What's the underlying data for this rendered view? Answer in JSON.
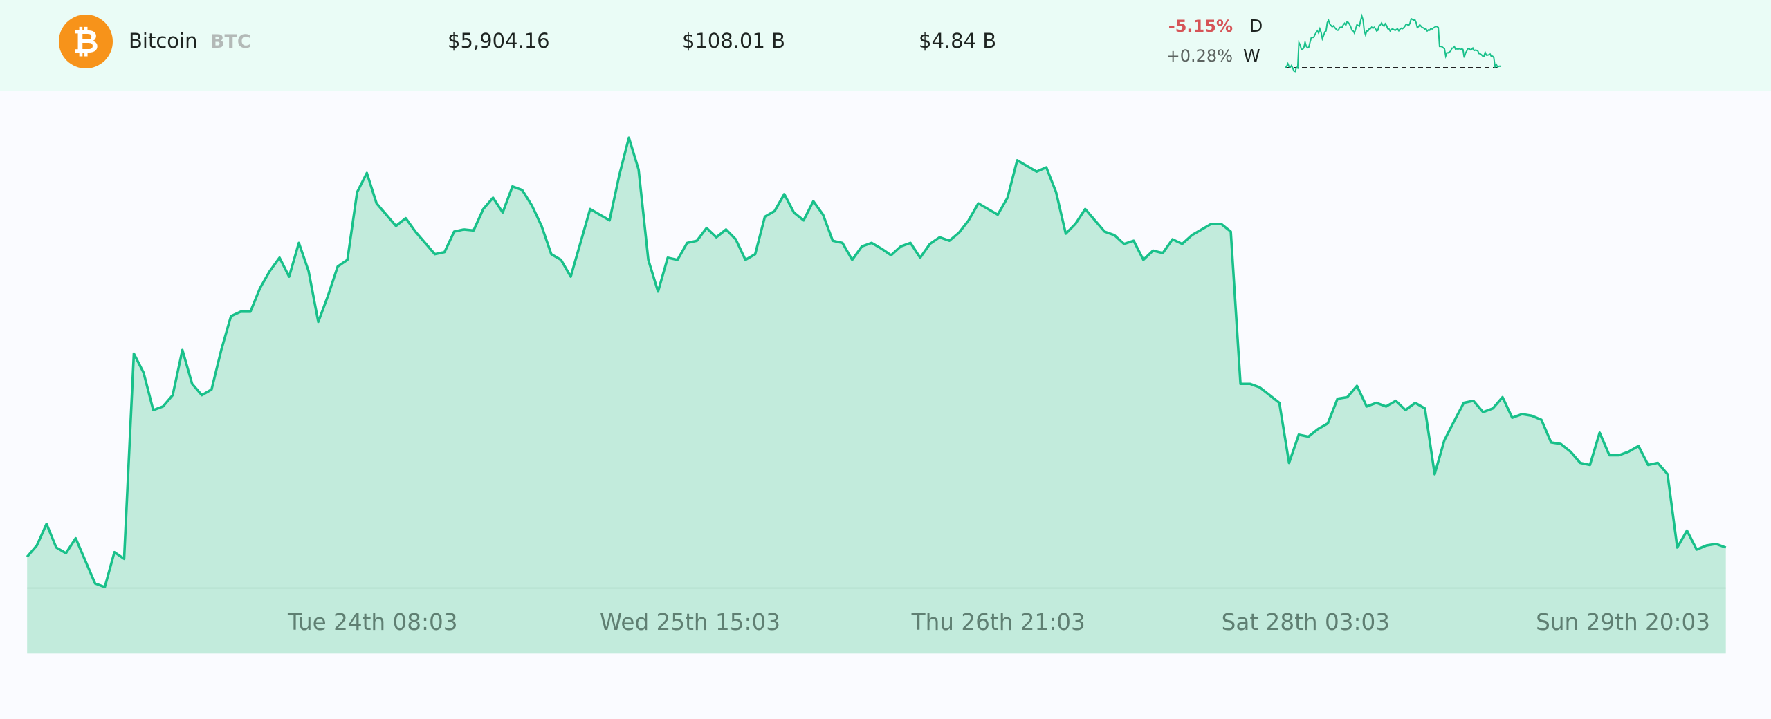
{
  "coin": {
    "name": "Bitcoin",
    "symbol": "BTC",
    "icon": "bitcoin-icon",
    "price": "$5,904.16",
    "market_cap": "$108.01 B",
    "volume": "$4.84 B",
    "change_day": "-5.15%",
    "change_day_label": "D",
    "change_week": "+0.28%",
    "change_week_label": "W"
  },
  "colors": {
    "line": "#19c08a",
    "fill": "#c2ebdc",
    "negative": "#d65457",
    "brand": "#f7931a"
  },
  "chart_data": {
    "type": "area",
    "title": "",
    "xlabel": "",
    "ylabel": "",
    "x_ticks": [
      "Tue 24th 08:03",
      "Wed 25th 15:03",
      "Thu 26th 21:03",
      "Sat 28th 03:03",
      "Sun 29th 20:03"
    ],
    "ylim": [
      5825,
      6791
    ],
    "grid": false,
    "y_axis_visible": false,
    "values": [
      5886,
      5908,
      5950,
      5904,
      5893,
      5922,
      5878,
      5834,
      5827,
      5895,
      5882,
      6282,
      6245,
      6172,
      6179,
      6201,
      6289,
      6223,
      6201,
      6212,
      6289,
      6355,
      6364,
      6364,
      6410,
      6443,
      6469,
      6432,
      6498,
      6443,
      6344,
      6395,
      6452,
      6465,
      6597,
      6634,
      6575,
      6553,
      6531,
      6546,
      6520,
      6498,
      6476,
      6480,
      6520,
      6524,
      6522,
      6564,
      6586,
      6557,
      6608,
      6601,
      6571,
      6531,
      6476,
      6465,
      6432,
      6498,
      6564,
      6553,
      6542,
      6630,
      6703,
      6641,
      6465,
      6403,
      6469,
      6465,
      6498,
      6502,
      6527,
      6509,
      6524,
      6505,
      6465,
      6476,
      6549,
      6560,
      6593,
      6557,
      6542,
      6579,
      6553,
      6502,
      6498,
      6465,
      6491,
      6498,
      6487,
      6474,
      6491,
      6498,
      6469,
      6496,
      6509,
      6502,
      6518,
      6542,
      6575,
      6564,
      6553,
      6586,
      6659,
      6648,
      6637,
      6645,
      6597,
      6516,
      6535,
      6564,
      6542,
      6520,
      6513,
      6496,
      6502,
      6465,
      6483,
      6478,
      6505,
      6496,
      6513,
      6524,
      6535,
      6535,
      6520,
      6223,
      6223,
      6216,
      6201,
      6186,
      6069,
      6124,
      6120,
      6135,
      6146,
      6194,
      6197,
      6219,
      6179,
      6186,
      6179,
      6190,
      6172,
      6186,
      6175,
      6047,
      6113,
      6150,
      6186,
      6190,
      6168,
      6175,
      6197,
      6157,
      6164,
      6161,
      6153,
      6109,
      6106,
      6091,
      6069,
      6065,
      6128,
      6084,
      6084,
      6091,
      6102,
      6065,
      6069,
      6047,
      5904,
      5937,
      5900,
      5908,
      5911,
      5904
    ]
  }
}
